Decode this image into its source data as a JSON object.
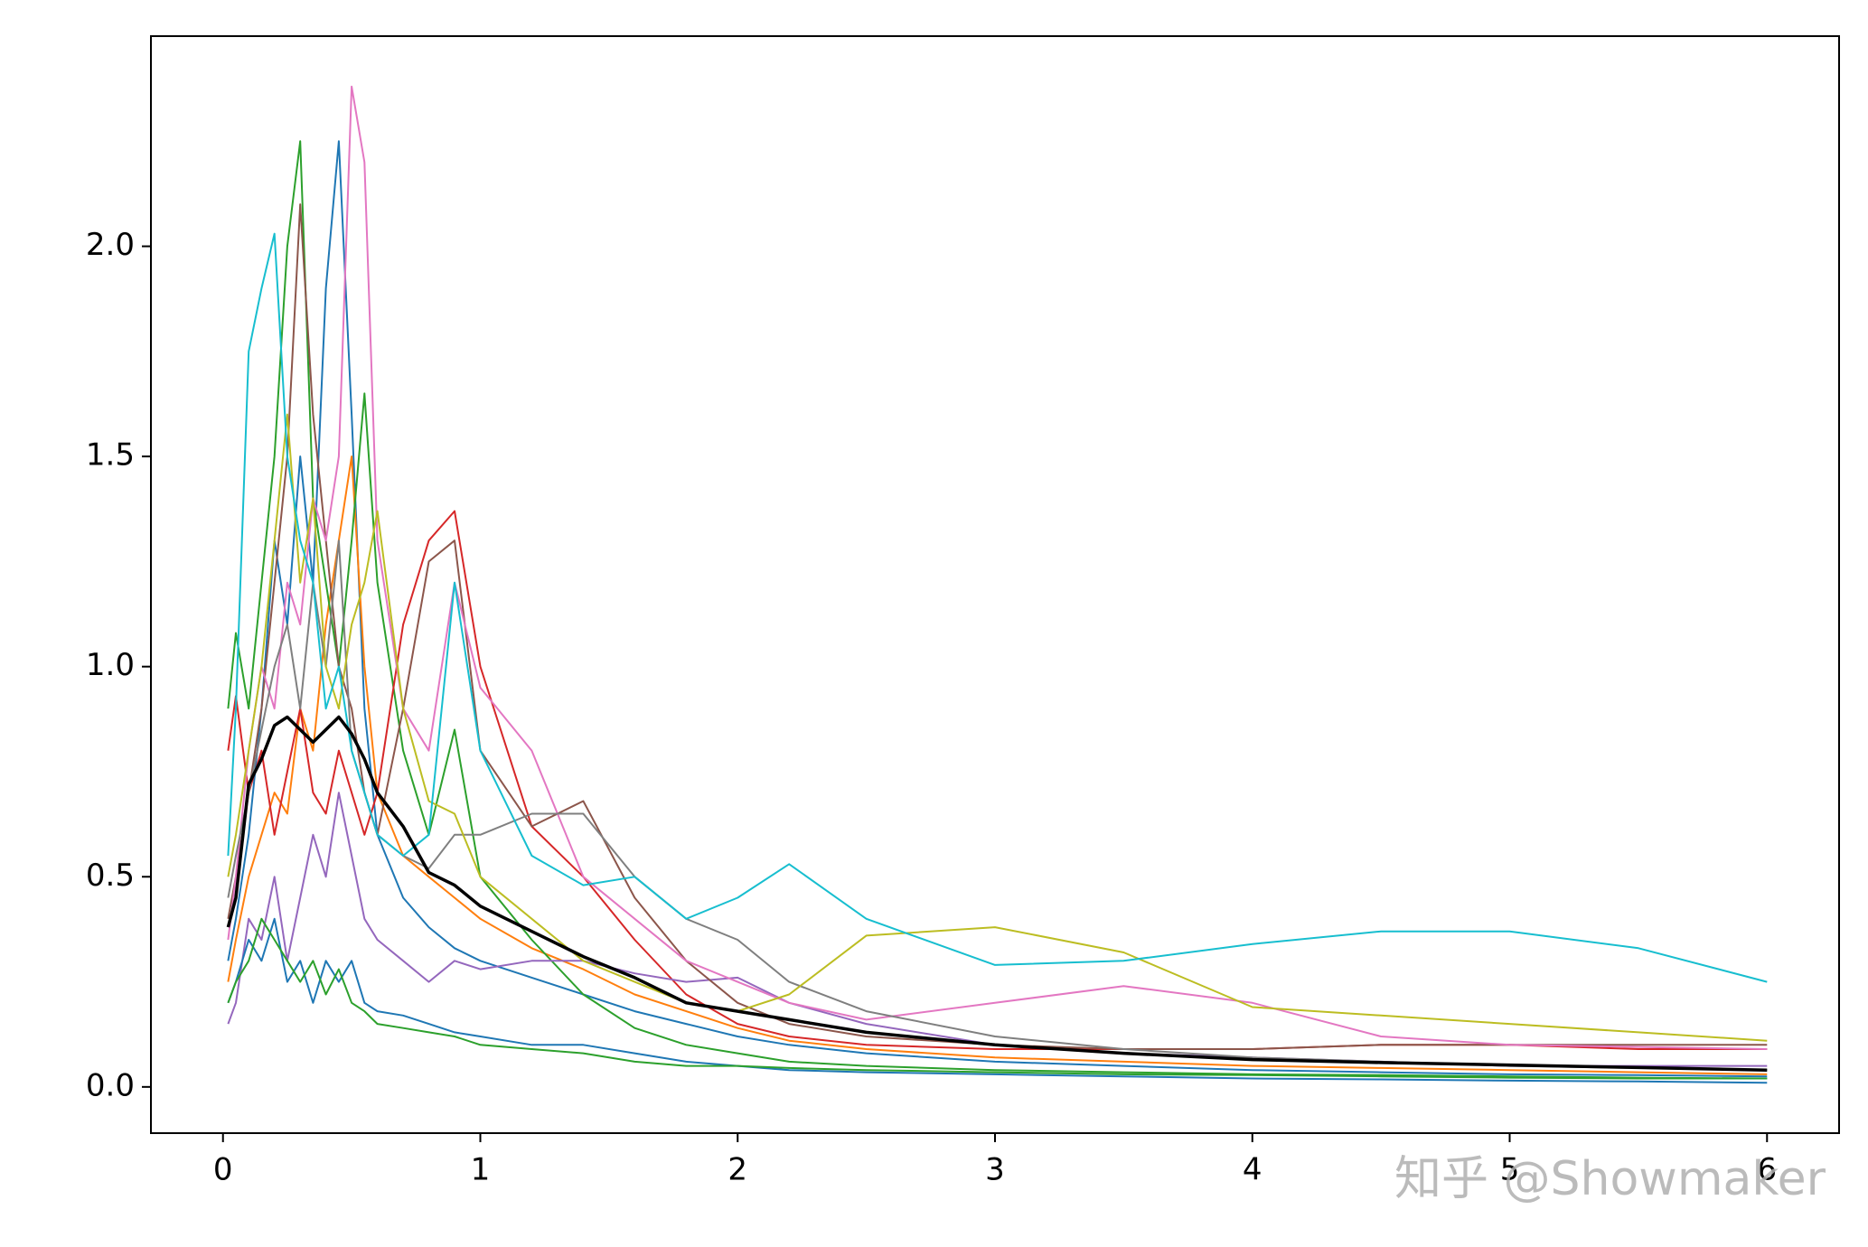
{
  "chart_data": {
    "type": "line",
    "x": [
      0.02,
      0.05,
      0.1,
      0.15,
      0.2,
      0.25,
      0.3,
      0.35,
      0.4,
      0.45,
      0.5,
      0.55,
      0.6,
      0.7,
      0.8,
      0.9,
      1.0,
      1.2,
      1.4,
      1.6,
      1.8,
      2.0,
      2.2,
      2.5,
      3.0,
      3.5,
      4.0,
      4.5,
      5.0,
      5.5,
      6.0
    ],
    "series": [
      {
        "color": "#1f77b4",
        "values": [
          0.3,
          0.4,
          0.6,
          0.9,
          1.3,
          1.1,
          1.5,
          1.2,
          1.9,
          2.25,
          1.6,
          0.9,
          0.6,
          0.45,
          0.38,
          0.33,
          0.3,
          0.26,
          0.22,
          0.18,
          0.15,
          0.12,
          0.1,
          0.08,
          0.06,
          0.05,
          0.04,
          0.035,
          0.03,
          0.028,
          0.025
        ]
      },
      {
        "color": "#ff7f0e",
        "values": [
          0.25,
          0.35,
          0.5,
          0.6,
          0.7,
          0.65,
          0.9,
          0.8,
          1.1,
          1.3,
          1.5,
          1.0,
          0.7,
          0.55,
          0.5,
          0.45,
          0.4,
          0.33,
          0.28,
          0.22,
          0.18,
          0.14,
          0.11,
          0.09,
          0.07,
          0.06,
          0.05,
          0.045,
          0.04,
          0.035,
          0.03
        ]
      },
      {
        "color": "#2ca02c",
        "values": [
          0.9,
          1.08,
          0.9,
          1.2,
          1.5,
          2.0,
          2.25,
          1.4,
          1.2,
          1.0,
          1.3,
          1.65,
          1.2,
          0.8,
          0.6,
          0.85,
          0.5,
          0.35,
          0.22,
          0.14,
          0.1,
          0.08,
          0.06,
          0.05,
          0.04,
          0.035,
          0.03,
          0.028,
          0.025,
          0.022,
          0.02
        ]
      },
      {
        "color": "#d62728",
        "values": [
          0.8,
          0.93,
          0.7,
          0.8,
          0.6,
          0.75,
          0.9,
          0.7,
          0.65,
          0.8,
          0.7,
          0.6,
          0.7,
          1.1,
          1.3,
          1.37,
          1.0,
          0.62,
          0.5,
          0.35,
          0.22,
          0.15,
          0.12,
          0.1,
          0.09,
          0.09,
          0.09,
          0.1,
          0.1,
          0.09,
          0.09
        ]
      },
      {
        "color": "#9467bd",
        "values": [
          0.15,
          0.2,
          0.4,
          0.35,
          0.5,
          0.3,
          0.45,
          0.6,
          0.5,
          0.7,
          0.55,
          0.4,
          0.35,
          0.3,
          0.25,
          0.3,
          0.28,
          0.3,
          0.3,
          0.27,
          0.25,
          0.26,
          0.2,
          0.15,
          0.1,
          0.08,
          0.07,
          0.06,
          0.05,
          0.05,
          0.05
        ]
      },
      {
        "color": "#8c564b",
        "values": [
          0.4,
          0.5,
          0.7,
          0.9,
          1.2,
          1.5,
          2.1,
          1.6,
          1.3,
          1.0,
          0.9,
          0.7,
          0.6,
          0.9,
          1.25,
          1.3,
          0.8,
          0.62,
          0.68,
          0.45,
          0.3,
          0.2,
          0.15,
          0.12,
          0.1,
          0.09,
          0.09,
          0.1,
          0.1,
          0.1,
          0.1
        ]
      },
      {
        "color": "#e377c2",
        "values": [
          0.35,
          0.5,
          0.8,
          1.0,
          0.9,
          1.2,
          1.1,
          1.4,
          1.3,
          1.5,
          2.38,
          2.2,
          1.3,
          0.9,
          0.8,
          1.2,
          0.95,
          0.8,
          0.5,
          0.4,
          0.3,
          0.25,
          0.2,
          0.16,
          0.2,
          0.24,
          0.2,
          0.12,
          0.1,
          0.095,
          0.09
        ]
      },
      {
        "color": "#7f7f7f",
        "values": [
          0.45,
          0.55,
          0.7,
          0.85,
          1.0,
          1.1,
          0.9,
          1.2,
          1.0,
          1.3,
          0.8,
          0.7,
          0.6,
          0.55,
          0.52,
          0.6,
          0.6,
          0.65,
          0.65,
          0.5,
          0.4,
          0.35,
          0.25,
          0.18,
          0.12,
          0.09,
          0.07,
          0.06,
          0.05,
          0.045,
          0.04
        ]
      },
      {
        "color": "#bcbd22",
        "values": [
          0.5,
          0.6,
          0.8,
          1.0,
          1.3,
          1.6,
          1.2,
          1.4,
          1.0,
          0.9,
          1.1,
          1.2,
          1.37,
          0.9,
          0.68,
          0.65,
          0.5,
          0.4,
          0.3,
          0.25,
          0.2,
          0.18,
          0.22,
          0.36,
          0.38,
          0.32,
          0.19,
          0.17,
          0.15,
          0.13,
          0.11
        ]
      },
      {
        "color": "#17becf",
        "values": [
          0.55,
          0.9,
          1.75,
          1.9,
          2.03,
          1.5,
          1.3,
          1.2,
          0.9,
          1.0,
          0.8,
          0.7,
          0.6,
          0.55,
          0.6,
          1.2,
          0.8,
          0.55,
          0.48,
          0.5,
          0.4,
          0.45,
          0.53,
          0.4,
          0.29,
          0.3,
          0.34,
          0.37,
          0.37,
          0.33,
          0.25
        ]
      },
      {
        "color": "#1f77b4",
        "values": [
          0.2,
          0.25,
          0.35,
          0.3,
          0.4,
          0.25,
          0.3,
          0.2,
          0.3,
          0.25,
          0.3,
          0.2,
          0.18,
          0.17,
          0.15,
          0.13,
          0.12,
          0.1,
          0.1,
          0.08,
          0.06,
          0.05,
          0.04,
          0.035,
          0.03,
          0.025,
          0.02,
          0.018,
          0.015,
          0.013,
          0.01
        ]
      },
      {
        "color": "#2ca02c",
        "values": [
          0.2,
          0.25,
          0.3,
          0.4,
          0.35,
          0.3,
          0.25,
          0.3,
          0.22,
          0.28,
          0.2,
          0.18,
          0.15,
          0.14,
          0.13,
          0.12,
          0.1,
          0.09,
          0.08,
          0.06,
          0.05,
          0.05,
          0.045,
          0.04,
          0.035,
          0.03,
          0.028,
          0.025,
          0.022,
          0.02,
          0.02
        ]
      },
      {
        "color": "#000000",
        "linewidth": 3.5,
        "values": [
          0.38,
          0.45,
          0.72,
          0.78,
          0.86,
          0.88,
          0.85,
          0.82,
          0.85,
          0.88,
          0.84,
          0.78,
          0.7,
          0.62,
          0.51,
          0.48,
          0.43,
          0.37,
          0.31,
          0.26,
          0.2,
          0.18,
          0.16,
          0.13,
          0.1,
          0.08,
          0.065,
          0.058,
          0.052,
          0.046,
          0.04
        ]
      }
    ],
    "xlim": [
      -0.28,
      6.28
    ],
    "ylim": [
      -0.11,
      2.5
    ],
    "xticks": [
      0,
      1,
      2,
      3,
      4,
      5,
      6
    ],
    "yticks": [
      {
        "value": 0,
        "label": "0.0"
      },
      0.5,
      {
        "value": 1,
        "label": "1.0"
      },
      1.5,
      {
        "value": 2,
        "label": "2.0"
      }
    ],
    "watermark": "知乎 @Showmaker"
  }
}
